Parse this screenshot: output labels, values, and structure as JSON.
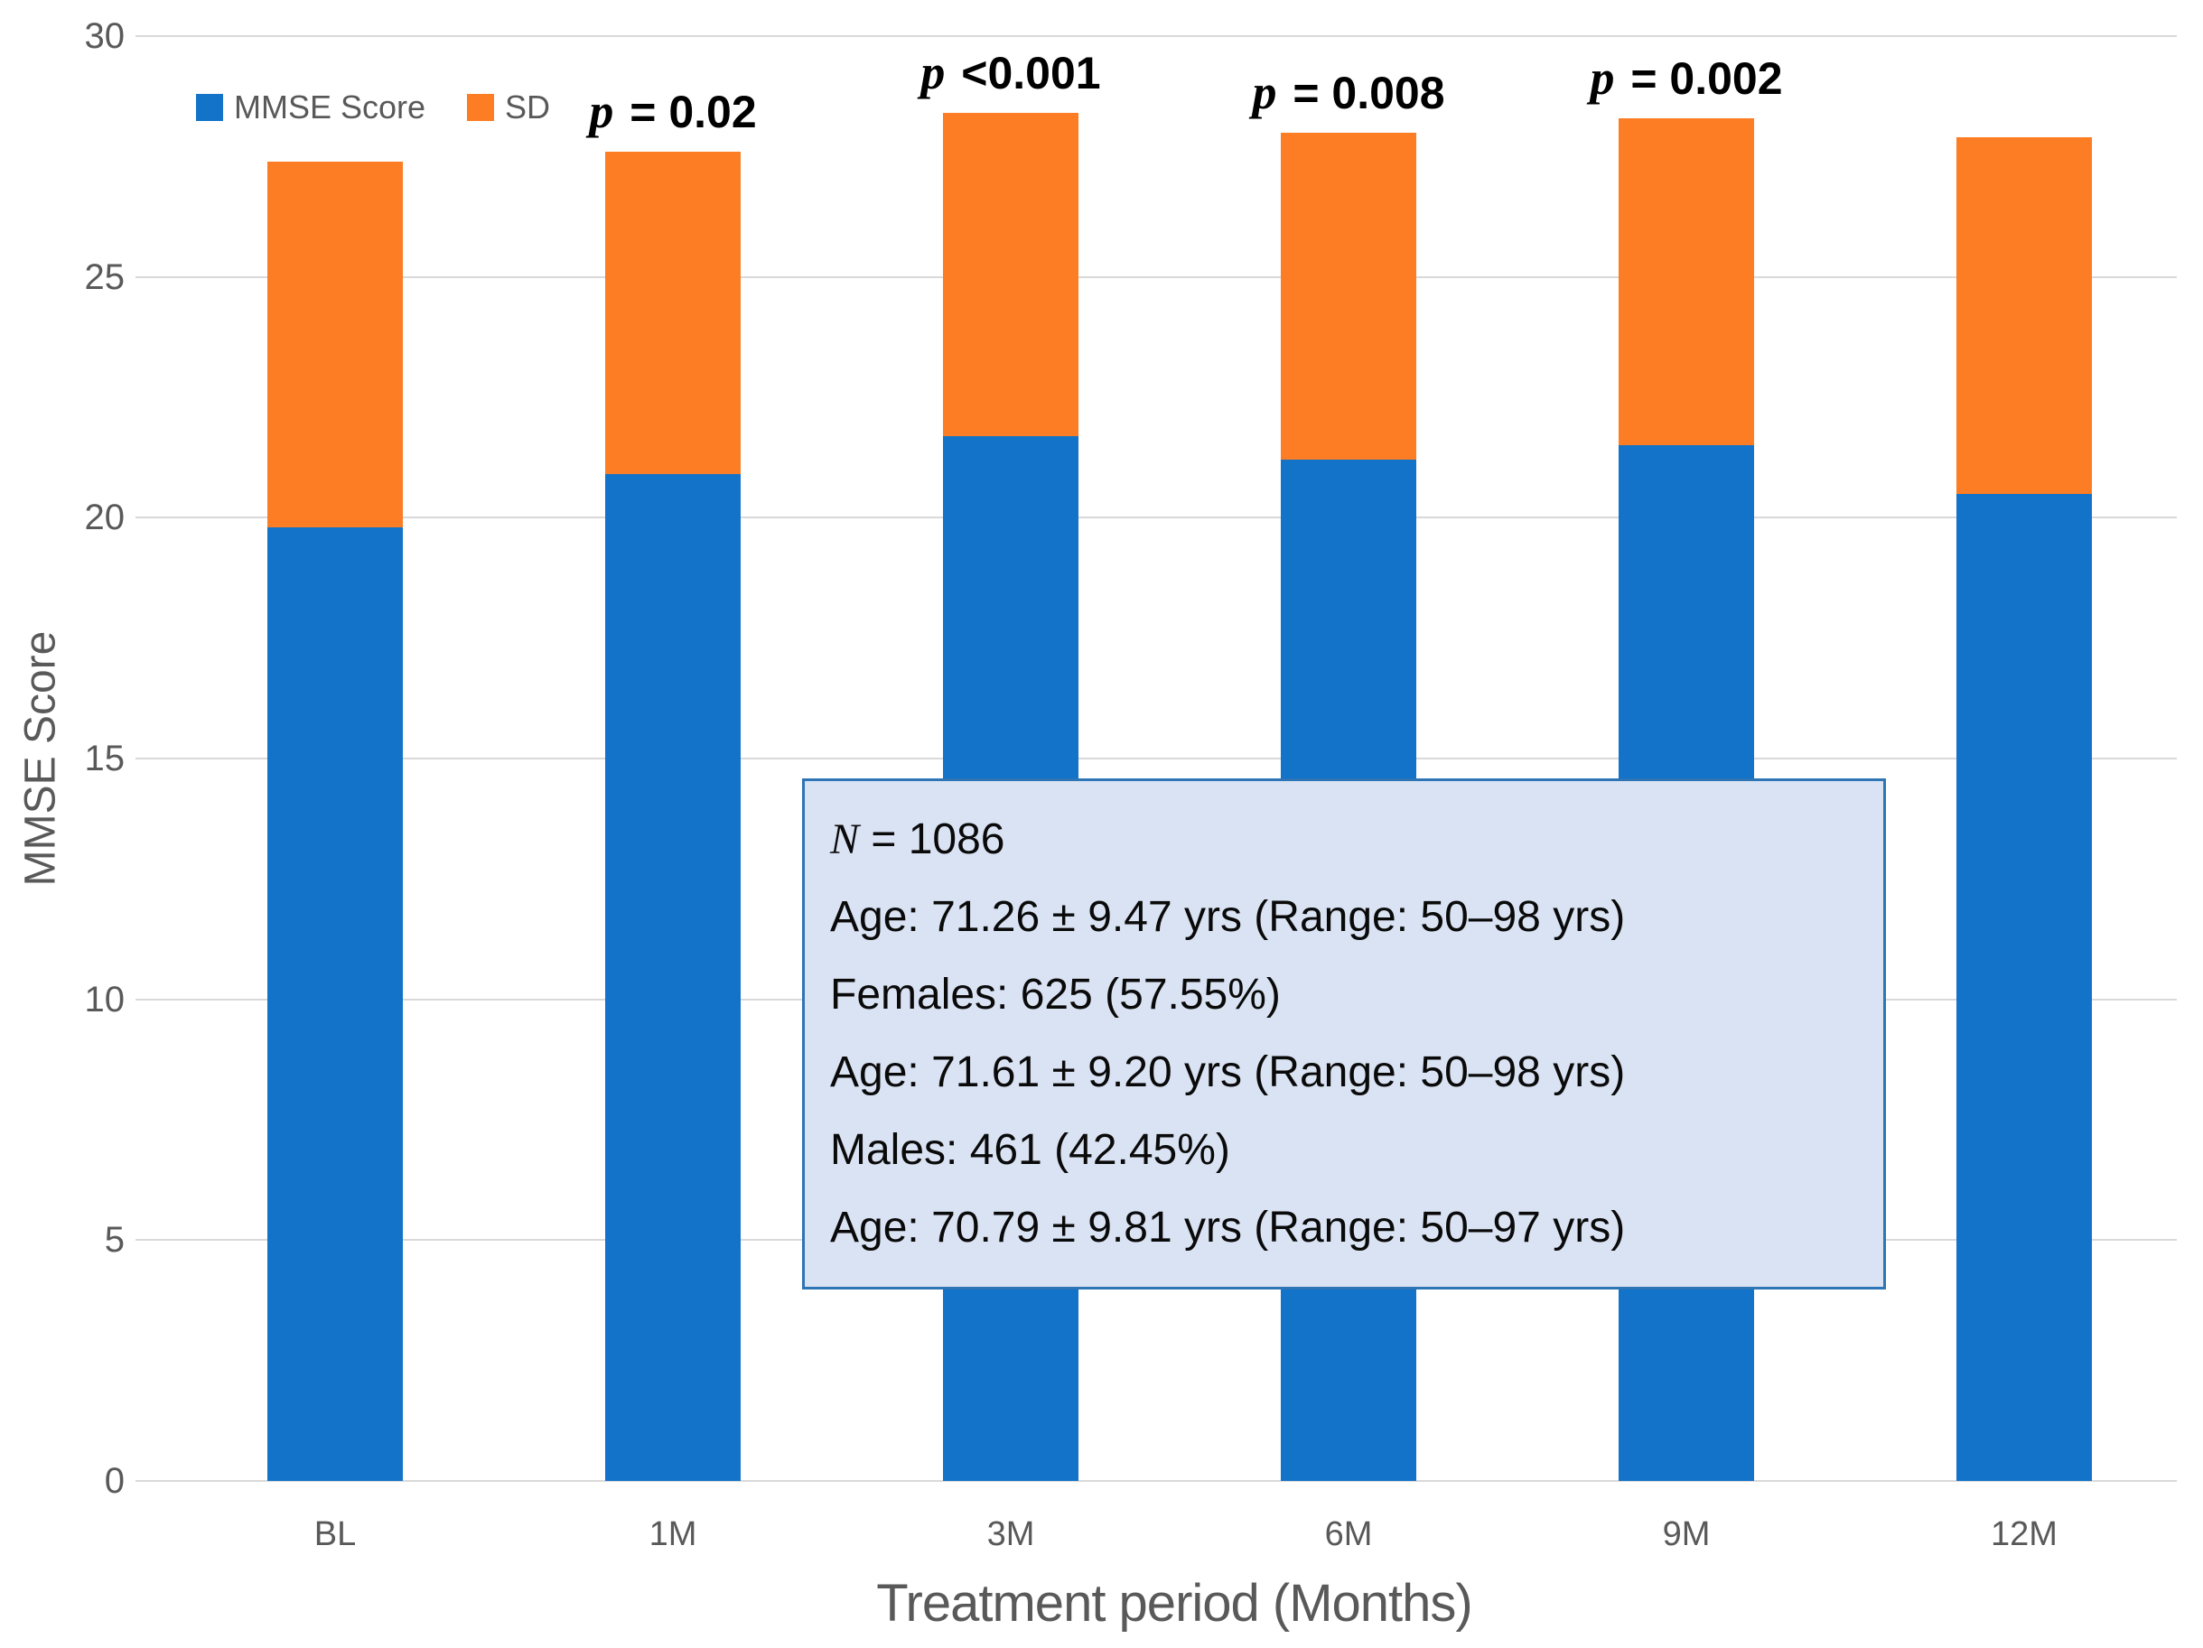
{
  "chart_data": {
    "type": "bar",
    "stacked": true,
    "xlabel": "Treatment period (Months)",
    "ylabel": "MMSE Score",
    "ylim": [
      0,
      30
    ],
    "yticks": [
      0,
      5,
      10,
      15,
      20,
      25,
      30
    ],
    "grid": "horizontal",
    "legend_position": "top-left-inside",
    "categories": [
      "BL",
      "1M",
      "3M",
      "6M",
      "9M",
      "12M"
    ],
    "series": [
      {
        "name": "MMSE Score",
        "color": "#1273C9",
        "values": [
          19.8,
          20.9,
          21.7,
          21.2,
          21.5,
          20.5
        ]
      },
      {
        "name": "SD",
        "color": "#FC7D23",
        "values": [
          7.6,
          6.7,
          6.7,
          6.8,
          6.8,
          7.4
        ]
      }
    ],
    "stack_totals": [
      27.4,
      27.6,
      28.4,
      28.0,
      28.3,
      27.9
    ],
    "p_value_labels": [
      "",
      "p = 0.02",
      "p <0.001",
      "p = 0.008",
      "p = 0.002",
      ""
    ],
    "annotation_box": {
      "lines": [
        "N = 1086",
        "Age: 71.26 ± 9.47 yrs (Range: 50–98 yrs)",
        "Females: 625 (57.55%)",
        "Age: 71.61 ± 9.20 yrs (Range: 50–98 yrs)",
        "Males: 461 (42.45%)",
        "Age: 70.79 ± 9.81 yrs (Range: 50–97 yrs)"
      ],
      "fill": "#DAE3F3",
      "border": "#2E75B6"
    },
    "colors": {
      "grid": "#D9D9D9",
      "axis_text": "#595959",
      "p_text": "#000000"
    }
  }
}
